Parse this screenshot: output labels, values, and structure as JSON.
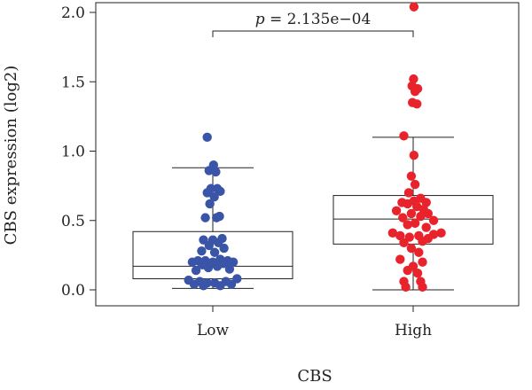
{
  "chart_data": {
    "type": "scatter",
    "subtype": "box-with-jitter",
    "title": "",
    "xlabel": "CBS",
    "ylabel": "CBS expression (log2)",
    "categories": [
      "Low",
      "High"
    ],
    "ylim": [
      0,
      2.05
    ],
    "yticks": [
      "0.0",
      "0.5",
      "1.0",
      "1.5",
      "2.0"
    ],
    "annotation": {
      "prefix": "p",
      "text": " = 2.135e−04"
    },
    "colors": {
      "Low": "#3a55a8",
      "High": "#e8232b"
    },
    "groups": [
      {
        "name": "Low",
        "box": {
          "min": 0.01,
          "q1": 0.08,
          "median": 0.17,
          "q3": 0.42,
          "max": 0.88
        },
        "points": [
          [
            -0.15,
            1.1
          ],
          [
            0.02,
            0.9
          ],
          [
            -0.1,
            0.86
          ],
          [
            0.08,
            0.85
          ],
          [
            0.12,
            0.73
          ],
          [
            -0.05,
            0.73
          ],
          [
            0.2,
            0.71
          ],
          [
            -0.15,
            0.7
          ],
          [
            0.04,
            0.67
          ],
          [
            -0.08,
            0.62
          ],
          [
            0.18,
            0.53
          ],
          [
            -0.2,
            0.52
          ],
          [
            0.1,
            0.52
          ],
          [
            0.25,
            0.37
          ],
          [
            -0.25,
            0.36
          ],
          [
            0.0,
            0.36
          ],
          [
            0.15,
            0.34
          ],
          [
            -0.1,
            0.32
          ],
          [
            0.3,
            0.3
          ],
          [
            -0.3,
            0.28
          ],
          [
            0.05,
            0.27
          ],
          [
            0.2,
            0.22
          ],
          [
            -0.2,
            0.21
          ],
          [
            0.4,
            0.21
          ],
          [
            -0.4,
            0.21
          ],
          [
            0.0,
            0.2
          ],
          [
            -0.55,
            0.2
          ],
          [
            0.55,
            0.2
          ],
          [
            0.28,
            0.19
          ],
          [
            -0.28,
            0.18
          ],
          [
            0.12,
            0.17
          ],
          [
            -0.12,
            0.16
          ],
          [
            0.45,
            0.15
          ],
          [
            -0.45,
            0.14
          ],
          [
            0.65,
            0.08
          ],
          [
            -0.65,
            0.07
          ],
          [
            0.35,
            0.06
          ],
          [
            -0.35,
            0.06
          ],
          [
            0.05,
            0.05
          ],
          [
            -0.15,
            0.05
          ],
          [
            0.5,
            0.04
          ],
          [
            -0.5,
            0.04
          ],
          [
            0.2,
            0.03
          ],
          [
            -0.25,
            0.03
          ]
        ]
      },
      {
        "name": "High",
        "box": {
          "min": 0.0,
          "q1": 0.33,
          "median": 0.51,
          "q3": 0.68,
          "max": 1.1
        },
        "points": [
          [
            0.02,
            2.04
          ],
          [
            0.01,
            1.52
          ],
          [
            -0.03,
            1.47
          ],
          [
            0.12,
            1.45
          ],
          [
            0.05,
            1.43
          ],
          [
            -0.02,
            1.35
          ],
          [
            0.1,
            1.34
          ],
          [
            -0.25,
            1.11
          ],
          [
            0.02,
            0.97
          ],
          [
            -0.05,
            0.82
          ],
          [
            0.05,
            0.76
          ],
          [
            -0.12,
            0.7
          ],
          [
            0.2,
            0.66
          ],
          [
            0.02,
            0.64
          ],
          [
            -0.3,
            0.63
          ],
          [
            0.35,
            0.63
          ],
          [
            -0.15,
            0.62
          ],
          [
            0.1,
            0.6
          ],
          [
            0.28,
            0.58
          ],
          [
            -0.45,
            0.57
          ],
          [
            0.4,
            0.55
          ],
          [
            -0.05,
            0.55
          ],
          [
            0.2,
            0.53
          ],
          [
            -0.28,
            0.52
          ],
          [
            0.55,
            0.5
          ],
          [
            0.05,
            0.48
          ],
          [
            -0.15,
            0.47
          ],
          [
            0.35,
            0.45
          ],
          [
            -0.55,
            0.41
          ],
          [
            0.75,
            0.41
          ],
          [
            0.55,
            0.4
          ],
          [
            -0.35,
            0.39
          ],
          [
            0.15,
            0.39
          ],
          [
            -0.1,
            0.38
          ],
          [
            0.4,
            0.37
          ],
          [
            0.25,
            0.35
          ],
          [
            -0.25,
            0.34
          ],
          [
            -0.05,
            0.3
          ],
          [
            0.15,
            0.27
          ],
          [
            -0.35,
            0.22
          ],
          [
            0.25,
            0.2
          ],
          [
            0.0,
            0.17
          ],
          [
            -0.15,
            0.14
          ],
          [
            0.12,
            0.12
          ],
          [
            0.2,
            0.06
          ],
          [
            -0.25,
            0.06
          ],
          [
            -0.2,
            0.02
          ],
          [
            0.25,
            0.02
          ]
        ]
      }
    ]
  }
}
